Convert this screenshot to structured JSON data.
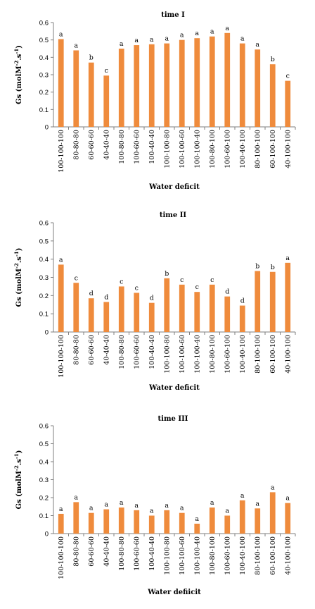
{
  "chart_data": [
    {
      "type": "bar",
      "title": "time I",
      "xlabel": "Water deficit",
      "ylabel": "Gs (molM-2.s-1)",
      "ylim": [
        0,
        0.6
      ],
      "yticks": [
        "0",
        "0.1",
        "0.2",
        "0.3",
        "0.4",
        "0.5",
        "0.6"
      ],
      "categories": [
        "100-100-100",
        "80-80-80",
        "60-60-60",
        "40-40-40",
        "100-80-80",
        "100-60-60",
        "100-40-40",
        "100-100-80",
        "100-100-60",
        "100-100-40",
        "100-80-100",
        "100-60-100",
        "100-40-100",
        "80-100-100",
        "60-100-100",
        "40-100-100"
      ],
      "values": [
        0.505,
        0.44,
        0.37,
        0.295,
        0.45,
        0.47,
        0.475,
        0.48,
        0.5,
        0.51,
        0.52,
        0.54,
        0.48,
        0.445,
        0.36,
        0.265
      ],
      "letters": [
        "a",
        "a",
        "b",
        "c",
        "a",
        "a",
        "a",
        "a",
        "a",
        "a",
        "a",
        "a",
        "a",
        "a",
        "b",
        "c"
      ],
      "color": "#ef8b3c",
      "grid": false
    },
    {
      "type": "bar",
      "title": "time II",
      "xlabel": "Water deficit",
      "ylabel": "Gs (molM-2.s-1)",
      "ylim": [
        0,
        0.6
      ],
      "yticks": [
        "0",
        "0.1",
        "0.2",
        "0.3",
        "0.4",
        "0.5",
        "0.6"
      ],
      "categories": [
        "100-100-100",
        "80-80-80",
        "60-60-60",
        "40-40-40",
        "100-80-80",
        "100-60-60",
        "100-40-40",
        "100-100-80",
        "100-100-60",
        "100-100-40",
        "100-80-100",
        "100-60-100",
        "100-40-100",
        "80-100-100",
        "60-100-100",
        "40-100-100"
      ],
      "values": [
        0.37,
        0.27,
        0.185,
        0.165,
        0.25,
        0.215,
        0.16,
        0.295,
        0.26,
        0.22,
        0.26,
        0.195,
        0.145,
        0.335,
        0.33,
        0.38
      ],
      "letters": [
        "a",
        "c",
        "d",
        "d",
        "c",
        "c",
        "d",
        "b",
        "c",
        "c",
        "c",
        "d",
        "d",
        "b",
        "b",
        "a"
      ],
      "color": "#ef8b3c",
      "grid": false
    },
    {
      "type": "bar",
      "title": "time III",
      "xlabel": "Water defiicit",
      "ylabel": "Gs (molM-2.s-1)",
      "ylim": [
        0,
        0.6
      ],
      "yticks": [
        "0",
        "0.1",
        "0.2",
        "0.3",
        "0.4",
        "0.5",
        "0.6"
      ],
      "categories": [
        "100-100-100",
        "80-80-80",
        "60-60-60",
        "40-40-40",
        "100-80-80",
        "100-60-60",
        "100-40-40",
        "100-100-80",
        "100-100-60",
        "100-100-40",
        "100-80-100",
        "100-60-100",
        "100-40-100",
        "80-100-100",
        "60-100-100",
        "40-100-100"
      ],
      "values": [
        0.11,
        0.175,
        0.115,
        0.135,
        0.145,
        0.13,
        0.1,
        0.13,
        0.115,
        0.055,
        0.145,
        0.1,
        0.185,
        0.14,
        0.23,
        0.17
      ],
      "letters": [
        "a",
        "a",
        "a",
        "a",
        "a",
        "a",
        "a",
        "a",
        "a",
        "a",
        "a",
        "a",
        "a",
        "a",
        "a",
        "a"
      ],
      "color": "#ef8b3c",
      "grid": false
    }
  ]
}
